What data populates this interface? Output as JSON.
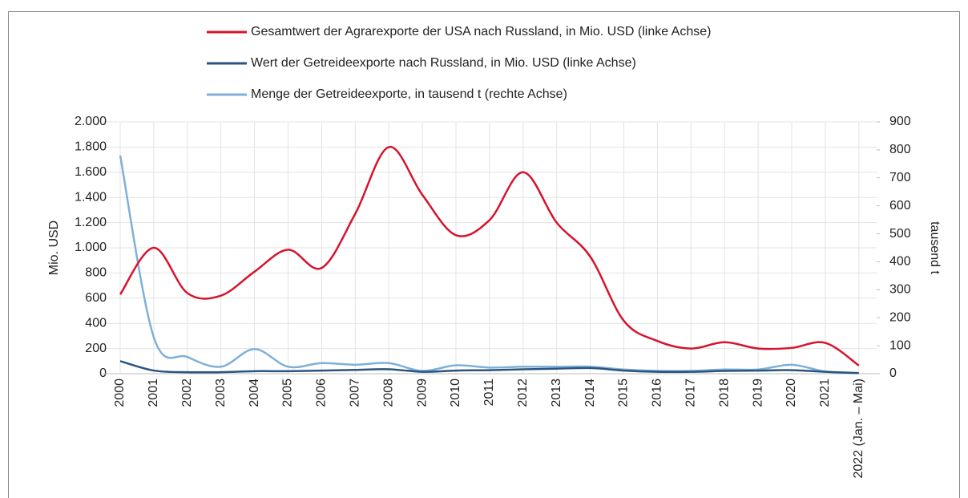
{
  "chart_data": {
    "type": "line",
    "categories": [
      "2000",
      "2001",
      "2002",
      "2003",
      "2004",
      "2005",
      "2006",
      "2007",
      "2008",
      "2009",
      "2010",
      "2011",
      "2012",
      "2013",
      "2014",
      "2015",
      "2016",
      "2017",
      "2018",
      "2019",
      "2020",
      "2021",
      "2022 (Jan. – Mai)"
    ],
    "series": [
      {
        "name": "Gesamtwert der Agrarexporte der USA nach Russland, in Mio. USD (linke Achse)",
        "color": "#d7132d",
        "axis": "y",
        "values": [
          630,
          1000,
          640,
          620,
          810,
          985,
          840,
          1270,
          1800,
          1420,
          1100,
          1220,
          1600,
          1200,
          930,
          420,
          260,
          200,
          250,
          200,
          205,
          245,
          65
        ]
      },
      {
        "name": "Wert der Getreideexporte nach Russland, in Mio. USD (linke Achse)",
        "color": "#2a5580",
        "axis": "y",
        "values": [
          100,
          25,
          12,
          12,
          20,
          20,
          25,
          30,
          35,
          15,
          25,
          28,
          35,
          40,
          45,
          25,
          15,
          15,
          22,
          25,
          28,
          15,
          5
        ]
      },
      {
        "name": "Menge der Getreideexporte, in tausend t (rechte Achse)",
        "color": "#7fb0d8",
        "axis": "y2",
        "values": [
          780,
          130,
          60,
          25,
          88,
          25,
          38,
          32,
          38,
          10,
          30,
          22,
          25,
          25,
          25,
          15,
          10,
          10,
          15,
          15,
          32,
          8,
          2
        ]
      }
    ],
    "ylabel": "Mio. USD",
    "y2label": "tausend t",
    "ylim": [
      0,
      2000
    ],
    "yticks": [
      0,
      200,
      400,
      600,
      800,
      {
        "value": 1000,
        "label": "1.000"
      },
      {
        "value": 1200,
        "label": "1.200"
      },
      {
        "value": 1400,
        "label": "1.400"
      },
      {
        "value": 1600,
        "label": "1.600"
      },
      {
        "value": 1800,
        "label": "1.800"
      },
      {
        "value": 2000,
        "label": "2.000"
      }
    ],
    "y2lim": [
      0,
      900
    ],
    "y2ticks": [
      0,
      100,
      200,
      300,
      400,
      500,
      600,
      700,
      800,
      900
    ],
    "grid": true
  }
}
